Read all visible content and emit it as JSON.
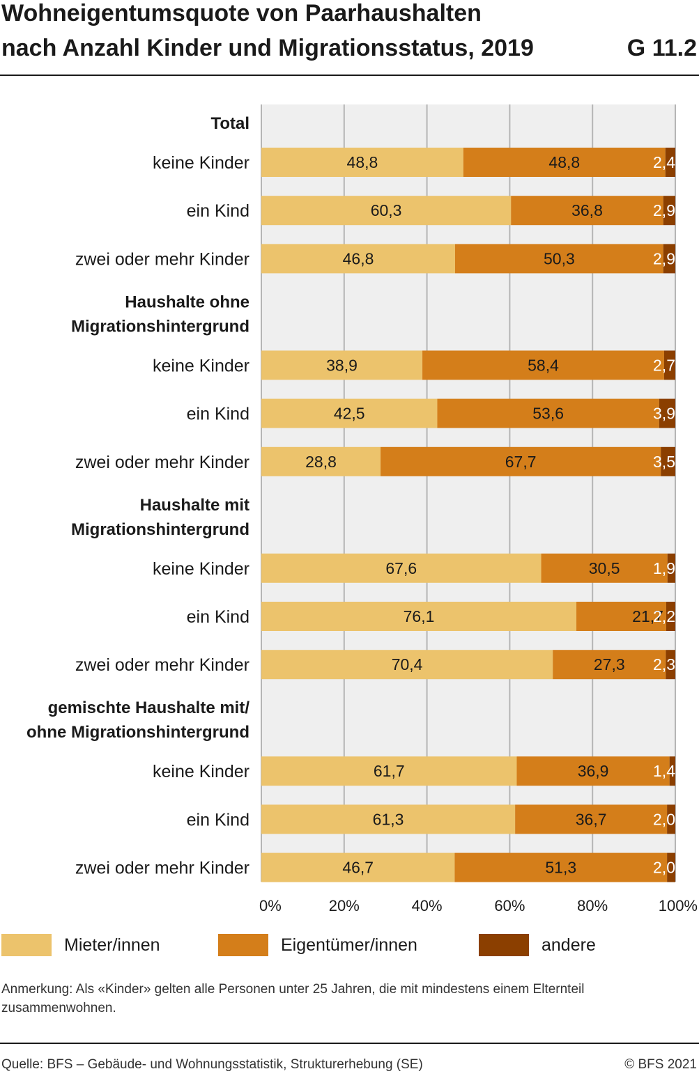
{
  "title": {
    "line1": "Wohneigentumsquote von Paarhaushalten",
    "line2": "nach Anzahl Kinder und Migrationsstatus, 2019",
    "code": "G 11.2"
  },
  "chart_data": {
    "type": "bar",
    "orientation": "horizontal",
    "stacked": true,
    "xlim": [
      0,
      100
    ],
    "x_ticks": [
      "0%",
      "20%",
      "40%",
      "60%",
      "80%",
      "100%"
    ],
    "grid": true,
    "series_names": [
      "Mieter/innen",
      "Eigentümer/innen",
      "andere"
    ],
    "colors": [
      "#ecc36c",
      "#d47e1a",
      "#8b3f00"
    ],
    "groups": [
      {
        "heading": [
          "Total"
        ],
        "rows": [
          {
            "label": "keine Kinder",
            "values": [
              48.8,
              48.8,
              2.4
            ],
            "labels": [
              "48,8",
              "48,8",
              "2,4"
            ]
          },
          {
            "label": "ein Kind",
            "values": [
              60.3,
              36.8,
              2.9
            ],
            "labels": [
              "60,3",
              "36,8",
              "2,9"
            ]
          },
          {
            "label": "zwei oder mehr Kinder",
            "values": [
              46.8,
              50.3,
              2.9
            ],
            "labels": [
              "46,8",
              "50,3",
              "2,9"
            ]
          }
        ]
      },
      {
        "heading": [
          "Haushalte ohne",
          "Migrationshintergrund"
        ],
        "rows": [
          {
            "label": "keine Kinder",
            "values": [
              38.9,
              58.4,
              2.7
            ],
            "labels": [
              "38,9",
              "58,4",
              "2,7"
            ]
          },
          {
            "label": "ein Kind",
            "values": [
              42.5,
              53.6,
              3.9
            ],
            "labels": [
              "42,5",
              "53,6",
              "3,9"
            ]
          },
          {
            "label": "zwei oder mehr Kinder",
            "values": [
              28.8,
              67.7,
              3.5
            ],
            "labels": [
              "28,8",
              "67,7",
              "3,5"
            ]
          }
        ]
      },
      {
        "heading": [
          "Haushalte mit",
          "Migrationshintergrund"
        ],
        "rows": [
          {
            "label": "keine Kinder",
            "values": [
              67.6,
              30.5,
              1.9
            ],
            "labels": [
              "67,6",
              "30,5",
              "1,9"
            ]
          },
          {
            "label": "ein Kind",
            "values": [
              76.1,
              21.7,
              2.2
            ],
            "labels": [
              "76,1",
              "21,7",
              "2,2"
            ]
          },
          {
            "label": "zwei oder mehr Kinder",
            "values": [
              70.4,
              27.3,
              2.3
            ],
            "labels": [
              "70,4",
              "27,3",
              "2,3"
            ]
          }
        ]
      },
      {
        "heading": [
          "gemischte Haushalte mit/",
          "ohne Migrationshintergrund"
        ],
        "rows": [
          {
            "label": "keine Kinder",
            "values": [
              61.7,
              36.9,
              1.4
            ],
            "labels": [
              "61,7",
              "36,9",
              "1,4"
            ]
          },
          {
            "label": "ein Kind",
            "values": [
              61.3,
              36.7,
              2.0
            ],
            "labels": [
              "61,3",
              "36,7",
              "2,0"
            ]
          },
          {
            "label": "zwei oder mehr Kinder",
            "values": [
              46.7,
              51.3,
              2.0
            ],
            "labels": [
              "46,7",
              "51,3",
              "2,0"
            ]
          }
        ]
      }
    ]
  },
  "legend": {
    "items": [
      {
        "label": "Mieter/innen",
        "color": "#ecc36c"
      },
      {
        "label": "Eigentümer/innen",
        "color": "#d47e1a"
      },
      {
        "label": "andere",
        "color": "#8b3f00"
      }
    ]
  },
  "note": "Anmerkung: Als «Kinder» gelten alle Personen unter 25 Jahren, die mit mindestens einem Elternteil zusammenwohnen.",
  "source": "Quelle: BFS – Gebäude- und Wohnungsstatistik, Strukturerhebung (SE)",
  "copyright": "© BFS 2021"
}
